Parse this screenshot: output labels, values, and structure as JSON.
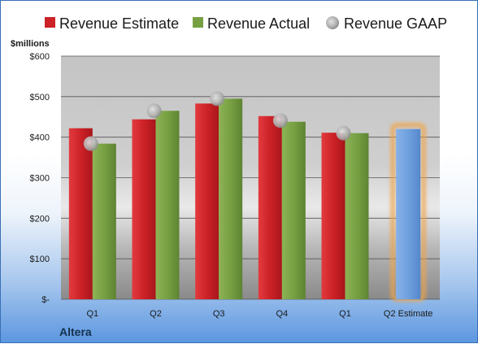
{
  "chart_data": {
    "type": "bar",
    "categories": [
      "Q1",
      "Q2",
      "Q3",
      "Q4",
      "Q1",
      "Q2 Estimate"
    ],
    "series": [
      {
        "name": "Revenue Estimate",
        "color": "#cc2227",
        "values": [
          422,
          444,
          483,
          452,
          411,
          null
        ]
      },
      {
        "name": "Revenue Actual",
        "color": "#77a043",
        "values": [
          384,
          465,
          495,
          438,
          410,
          null
        ]
      },
      {
        "name": "Revenue GAAP",
        "color": "#b7b7b7",
        "marker": "dot",
        "values": [
          384,
          465,
          495,
          441,
          410,
          null
        ]
      }
    ],
    "forecast": {
      "category": "Q2 Estimate",
      "value": 420,
      "color": "#6fa0de",
      "glow": "#f0a44a"
    },
    "ylabel": "$millions",
    "ylim": [
      0,
      600
    ],
    "yticks": [
      0,
      100,
      200,
      300,
      400,
      500,
      600
    ],
    "ytick_labels": [
      "$-",
      "$100",
      "$200",
      "$300",
      "$400",
      "$500",
      "$600"
    ],
    "grid": true,
    "legend": "top",
    "company": "Altera"
  }
}
